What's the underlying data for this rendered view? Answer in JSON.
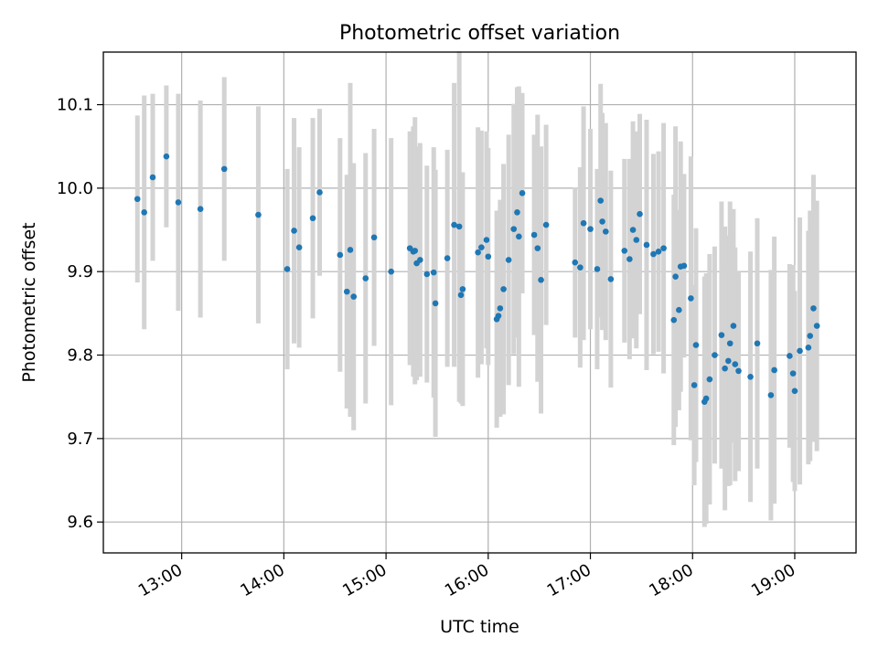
{
  "chart_data": {
    "type": "scatter",
    "title": "Photometric offset variation",
    "xlabel": "UTC time",
    "ylabel": "Photometric offset",
    "xlim": [
      "12:14",
      "19:36"
    ],
    "ylim": [
      9.563,
      10.163
    ],
    "x_ticks": [
      "13:00",
      "14:00",
      "15:00",
      "16:00",
      "17:00",
      "18:00",
      "19:00"
    ],
    "y_ticks": [
      "9.6",
      "9.7",
      "9.8",
      "9.9",
      "10.0",
      "10.1"
    ],
    "grid": true,
    "colors": {
      "point": "#1f77b4",
      "errorbar": "#d3d3d3",
      "grid": "#b0b0b0"
    },
    "series": [
      {
        "x": [
          "12:34",
          "12:38",
          "12:43",
          "12:51",
          "12:58",
          "13:11",
          "13:25",
          "13:45",
          "14:02",
          "14:06",
          "14:09",
          "14:17",
          "14:21",
          "14:33",
          "14:37",
          "14:39",
          "14:41",
          "14:48",
          "14:53",
          "15:03",
          "15:14",
          "15:16",
          "15:17",
          "15:18",
          "15:20",
          "15:24",
          "15:28",
          "15:29",
          "15:36",
          "15:40",
          "15:43",
          "15:44",
          "15:45",
          "15:54",
          "15:56",
          "15:59",
          "16:00",
          "16:05",
          "16:06",
          "16:07",
          "16:09",
          "16:12",
          "16:15",
          "16:17",
          "16:18",
          "16:20",
          "16:27",
          "16:29",
          "16:31",
          "16:34",
          "16:51",
          "16:54",
          "16:56",
          "17:00",
          "17:04",
          "17:06",
          "17:07",
          "17:09",
          "17:12",
          "17:20",
          "17:23",
          "17:25",
          "17:27",
          "17:29",
          "17:33",
          "17:37",
          "17:40",
          "17:43",
          "17:49",
          "17:50",
          "17:52",
          "17:53",
          "17:55",
          "17:59",
          "18:01",
          "18:02",
          "18:07",
          "18:08",
          "18:10",
          "18:13",
          "18:17",
          "18:19",
          "18:21",
          "18:22",
          "18:24",
          "18:25",
          "18:27",
          "18:34",
          "18:38",
          "18:46",
          "18:48",
          "18:57",
          "18:59",
          "19:00",
          "19:03",
          "19:08",
          "19:09",
          "19:11",
          "19:13"
        ],
        "y": [
          9.987,
          9.971,
          10.013,
          10.038,
          9.983,
          9.975,
          10.023,
          9.968,
          9.903,
          9.949,
          9.929,
          9.964,
          9.995,
          9.92,
          9.876,
          9.926,
          9.87,
          9.892,
          9.941,
          9.9,
          9.928,
          9.924,
          9.925,
          9.91,
          9.914,
          9.897,
          9.899,
          9.862,
          9.916,
          9.956,
          9.954,
          9.872,
          9.879,
          9.923,
          9.929,
          9.938,
          9.918,
          9.843,
          9.847,
          9.856,
          9.879,
          9.914,
          9.951,
          9.971,
          9.942,
          9.994,
          9.944,
          9.928,
          9.89,
          9.956,
          9.911,
          9.905,
          9.958,
          9.951,
          9.903,
          9.985,
          9.96,
          9.948,
          9.891,
          9.925,
          9.915,
          9.95,
          9.938,
          9.969,
          9.932,
          9.921,
          9.924,
          9.928,
          9.842,
          9.894,
          9.854,
          9.906,
          9.907,
          9.868,
          9.764,
          9.812,
          9.744,
          9.748,
          9.771,
          9.8,
          9.824,
          9.784,
          9.793,
          9.814,
          9.835,
          9.789,
          9.781,
          9.774,
          9.814,
          9.752,
          9.782,
          9.799,
          9.778,
          9.757,
          9.805,
          9.809,
          9.823,
          9.856,
          9.835
        ],
        "yerr": [
          0.1,
          0.14,
          0.1,
          0.085,
          0.13,
          0.13,
          0.11,
          0.13,
          0.12,
          0.135,
          0.12,
          0.12,
          0.1,
          0.14,
          0.14,
          0.2,
          0.16,
          0.15,
          0.13,
          0.16,
          0.14,
          0.15,
          0.16,
          0.14,
          0.14,
          0.13,
          0.15,
          0.16,
          0.13,
          0.17,
          0.21,
          0.13,
          0.14,
          0.15,
          0.14,
          0.13,
          0.13,
          0.13,
          0.12,
          0.13,
          0.15,
          0.15,
          0.15,
          0.15,
          0.18,
          0.12,
          0.12,
          0.16,
          0.16,
          0.12,
          0.09,
          0.12,
          0.14,
          0.12,
          0.12,
          0.14,
          0.13,
          0.13,
          0.13,
          0.11,
          0.12,
          0.13,
          0.13,
          0.12,
          0.15,
          0.12,
          0.12,
          0.15,
          0.15,
          0.18,
          0.12,
          0.15,
          0.11,
          0.17,
          0.12,
          0.14,
          0.15,
          0.15,
          0.15,
          0.13,
          0.16,
          0.17,
          0.15,
          0.17,
          0.14,
          0.14,
          0.12,
          0.15,
          0.15,
          0.15,
          0.16,
          0.11,
          0.13,
          0.12,
          0.16,
          0.14,
          0.15,
          0.16,
          0.15
        ]
      }
    ]
  }
}
